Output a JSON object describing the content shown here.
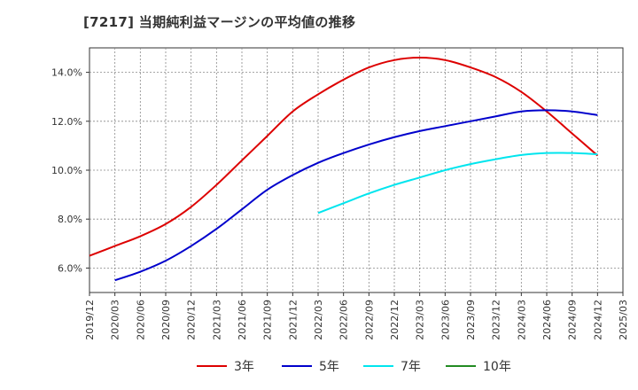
{
  "chart_data": {
    "type": "line",
    "title": "[7217]  当期純利益マージンの平均値の推移",
    "xlabel": "",
    "ylabel": "",
    "ylim": [
      5.0,
      15.0
    ],
    "y_ticks": [
      "6.0%",
      "8.0%",
      "10.0%",
      "12.0%",
      "14.0%"
    ],
    "y_tick_values": [
      6,
      8,
      10,
      12,
      14
    ],
    "x_ticks": [
      "2019/12",
      "2020/03",
      "2020/06",
      "2020/09",
      "2020/12",
      "2021/03",
      "2021/06",
      "2021/09",
      "2021/12",
      "2022/03",
      "2022/06",
      "2022/09",
      "2022/12",
      "2023/03",
      "2023/06",
      "2023/09",
      "2023/12",
      "2024/03",
      "2024/06",
      "2024/09",
      "2024/12",
      "2025/03"
    ],
    "grid": true,
    "legend_position": "bottom",
    "series": [
      {
        "name": "3年",
        "color": "#dd0000",
        "x": [
          "2019/12",
          "2020/03",
          "2020/06",
          "2020/09",
          "2020/12",
          "2021/03",
          "2021/06",
          "2021/09",
          "2021/12",
          "2022/03",
          "2022/06",
          "2022/09",
          "2022/12",
          "2023/03",
          "2023/06",
          "2023/09",
          "2023/12",
          "2024/03",
          "2024/06",
          "2024/09",
          "2024/12"
        ],
        "values": [
          6.5,
          6.9,
          7.3,
          7.8,
          8.5,
          9.4,
          10.4,
          11.4,
          12.4,
          13.1,
          13.7,
          14.2,
          14.5,
          14.6,
          14.5,
          14.2,
          13.8,
          13.2,
          12.4,
          11.5,
          10.6
        ]
      },
      {
        "name": "5年",
        "color": "#0000cc",
        "x": [
          "2020/03",
          "2020/06",
          "2020/09",
          "2020/12",
          "2021/03",
          "2021/06",
          "2021/09",
          "2021/12",
          "2022/03",
          "2022/06",
          "2022/09",
          "2022/12",
          "2023/03",
          "2023/06",
          "2023/09",
          "2023/12",
          "2024/03",
          "2024/06",
          "2024/09",
          "2024/12"
        ],
        "values": [
          5.5,
          5.85,
          6.3,
          6.9,
          7.6,
          8.4,
          9.2,
          9.8,
          10.3,
          10.7,
          11.05,
          11.35,
          11.6,
          11.8,
          12.0,
          12.2,
          12.4,
          12.45,
          12.4,
          12.25
        ]
      },
      {
        "name": "7年",
        "color": "#00e5ee",
        "x": [
          "2022/03",
          "2022/06",
          "2022/09",
          "2022/12",
          "2023/03",
          "2023/06",
          "2023/09",
          "2023/12",
          "2024/03",
          "2024/06",
          "2024/09",
          "2024/12"
        ],
        "values": [
          8.25,
          8.65,
          9.05,
          9.4,
          9.7,
          10.0,
          10.25,
          10.45,
          10.62,
          10.7,
          10.7,
          10.65
        ]
      },
      {
        "name": "10年",
        "color": "#228b22",
        "x": [],
        "values": []
      }
    ]
  }
}
